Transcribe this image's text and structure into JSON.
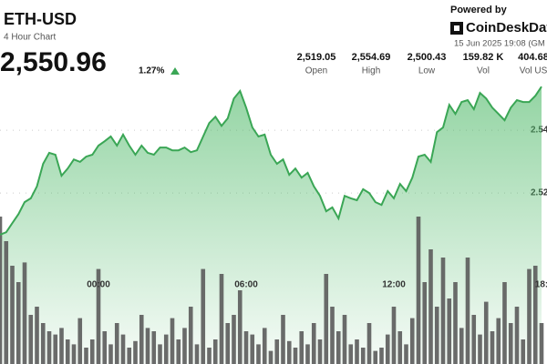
{
  "header": {
    "symbol": "ETH-USD",
    "subtitle": "4 Hour Chart",
    "price": "2,550.96",
    "change": "1.27%",
    "powered_by": "Powered by",
    "brand": "CoinDeskDat",
    "timestamp": "15 Jun 2025 19:08 (GM"
  },
  "stats": [
    {
      "value": "2,519.05",
      "label": "Open"
    },
    {
      "value": "2,554.69",
      "label": "High"
    },
    {
      "value": "2,500.43",
      "label": "Low"
    },
    {
      "value": "159.82 K",
      "label": "Vol"
    },
    {
      "value": "404.68",
      "label": "Vol US"
    }
  ],
  "chart_data": {
    "type": "line",
    "categories": [
      null,
      null,
      null,
      null,
      null,
      null,
      null,
      null,
      null,
      null,
      null,
      null,
      null,
      null,
      null,
      null,
      "00:00",
      null,
      null,
      null,
      null,
      null,
      null,
      null,
      null,
      null,
      null,
      null,
      null,
      null,
      null,
      null,
      null,
      null,
      null,
      null,
      null,
      null,
      null,
      null,
      "06:00",
      null,
      null,
      null,
      null,
      null,
      null,
      null,
      null,
      null,
      null,
      null,
      null,
      null,
      null,
      null,
      null,
      null,
      null,
      null,
      null,
      null,
      null,
      null,
      "12:00",
      null,
      null,
      null,
      null,
      null,
      null,
      null,
      null,
      null,
      null,
      null,
      null,
      null,
      null,
      null,
      null,
      null,
      null,
      null,
      null,
      null,
      null,
      null,
      "18:"
    ],
    "series": [
      {
        "color": "#3aa655",
        "values": [
          2506.7,
          2507.5,
          2510.4,
          2513.3,
          2517.1,
          2518.3,
          2522.1,
          2529.3,
          2532.8,
          2532.2,
          2525.5,
          2527.8,
          2530.7,
          2529.9,
          2531.6,
          2532.2,
          2535.1,
          2536.5,
          2538.0,
          2535.1,
          2538.6,
          2535.1,
          2532.2,
          2535.1,
          2532.8,
          2532.2,
          2534.5,
          2534.5,
          2533.6,
          2533.6,
          2534.5,
          2533.0,
          2533.6,
          2538.0,
          2542.3,
          2544.3,
          2541.4,
          2543.8,
          2550.1,
          2552.5,
          2547.2,
          2540.9,
          2538.0,
          2538.6,
          2532.2,
          2529.3,
          2530.7,
          2525.8,
          2527.8,
          2524.9,
          2526.4,
          2522.1,
          2519.1,
          2514.2,
          2515.4,
          2511.9,
          2519.1,
          2518.3,
          2517.7,
          2521.2,
          2520.0,
          2517.1,
          2516.2,
          2520.6,
          2518.3,
          2522.9,
          2520.6,
          2524.9,
          2531.6,
          2532.2,
          2529.9,
          2539.4,
          2540.9,
          2548.1,
          2545.2,
          2549.0,
          2549.6,
          2546.7,
          2551.9,
          2550.1,
          2547.2,
          2545.2,
          2543.2,
          2547.2,
          2549.6,
          2549.0,
          2549.0,
          2551.0,
          2553.9
        ]
      },
      {
        "color": "#5b5b5b",
        "axis": "y2",
        "values": [
          90,
          75,
          60,
          50,
          62,
          30,
          35,
          25,
          20,
          18,
          22,
          15,
          12,
          28,
          10,
          15,
          58,
          20,
          12,
          25,
          18,
          10,
          14,
          30,
          22,
          20,
          12,
          18,
          28,
          15,
          22,
          35,
          12,
          58,
          10,
          15,
          55,
          25,
          30,
          45,
          20,
          18,
          12,
          22,
          8,
          15,
          30,
          14,
          10,
          20,
          12,
          25,
          15,
          55,
          35,
          20,
          30,
          12,
          15,
          10,
          25,
          8,
          10,
          18,
          35,
          20,
          12,
          28,
          90,
          50,
          70,
          35,
          65,
          40,
          50,
          22,
          65,
          30,
          18,
          38,
          20,
          28,
          50,
          25,
          35,
          15,
          58,
          60,
          25
        ]
      }
    ],
    "ylim": [
      2465.5,
      2558.3
    ],
    "yticks": [
      {
        "value": 2540,
        "label": "2.54"
      },
      {
        "value": 2520,
        "label": "2.52"
      }
    ],
    "y2lim": [
      0,
      100
    ],
    "grid": true
  }
}
